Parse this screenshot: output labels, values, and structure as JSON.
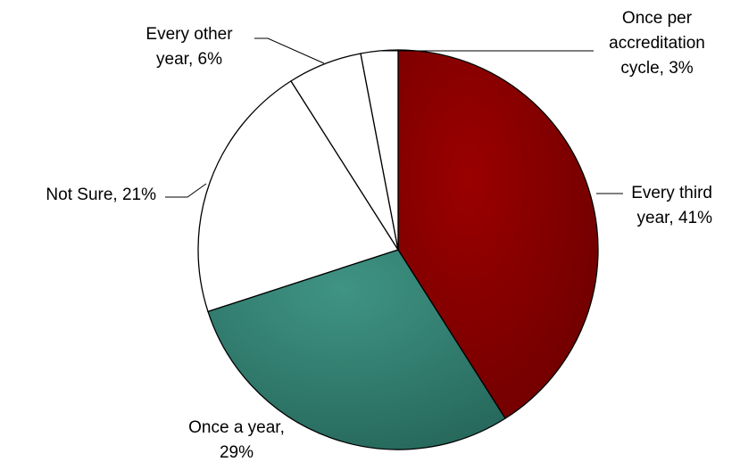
{
  "chart_data": {
    "type": "pie",
    "title": "",
    "start_angle_deg": 0,
    "direction": "clockwise",
    "slices": [
      {
        "key": "every-third-year",
        "name": "Every third year",
        "value": 41,
        "label_lines": [
          "Every third",
          "year, 41%"
        ],
        "fill": "gradient:maroon",
        "color": "#8b0000"
      },
      {
        "key": "once-a-year",
        "name": "Once a year",
        "value": 29,
        "label_lines": [
          "Once a year,",
          "29%"
        ],
        "fill": "gradient:teal",
        "color": "#2e7d6e"
      },
      {
        "key": "not-sure",
        "name": "Not Sure",
        "value": 21,
        "label_lines": [
          "Not Sure, 21%"
        ],
        "fill": "#ffffff",
        "color": "#ffffff"
      },
      {
        "key": "every-other-year",
        "name": "Every other year",
        "value": 6,
        "label_lines": [
          "Every other",
          "year, 6%"
        ],
        "fill": "#ffffff",
        "color": "#ffffff"
      },
      {
        "key": "once-per-accreditation-cycle",
        "name": "Once per accreditation cycle",
        "value": 3,
        "label_lines": [
          "Once per",
          "accreditation",
          "cycle, 3%"
        ],
        "fill": "#ffffff",
        "color": "#ffffff"
      }
    ]
  }
}
